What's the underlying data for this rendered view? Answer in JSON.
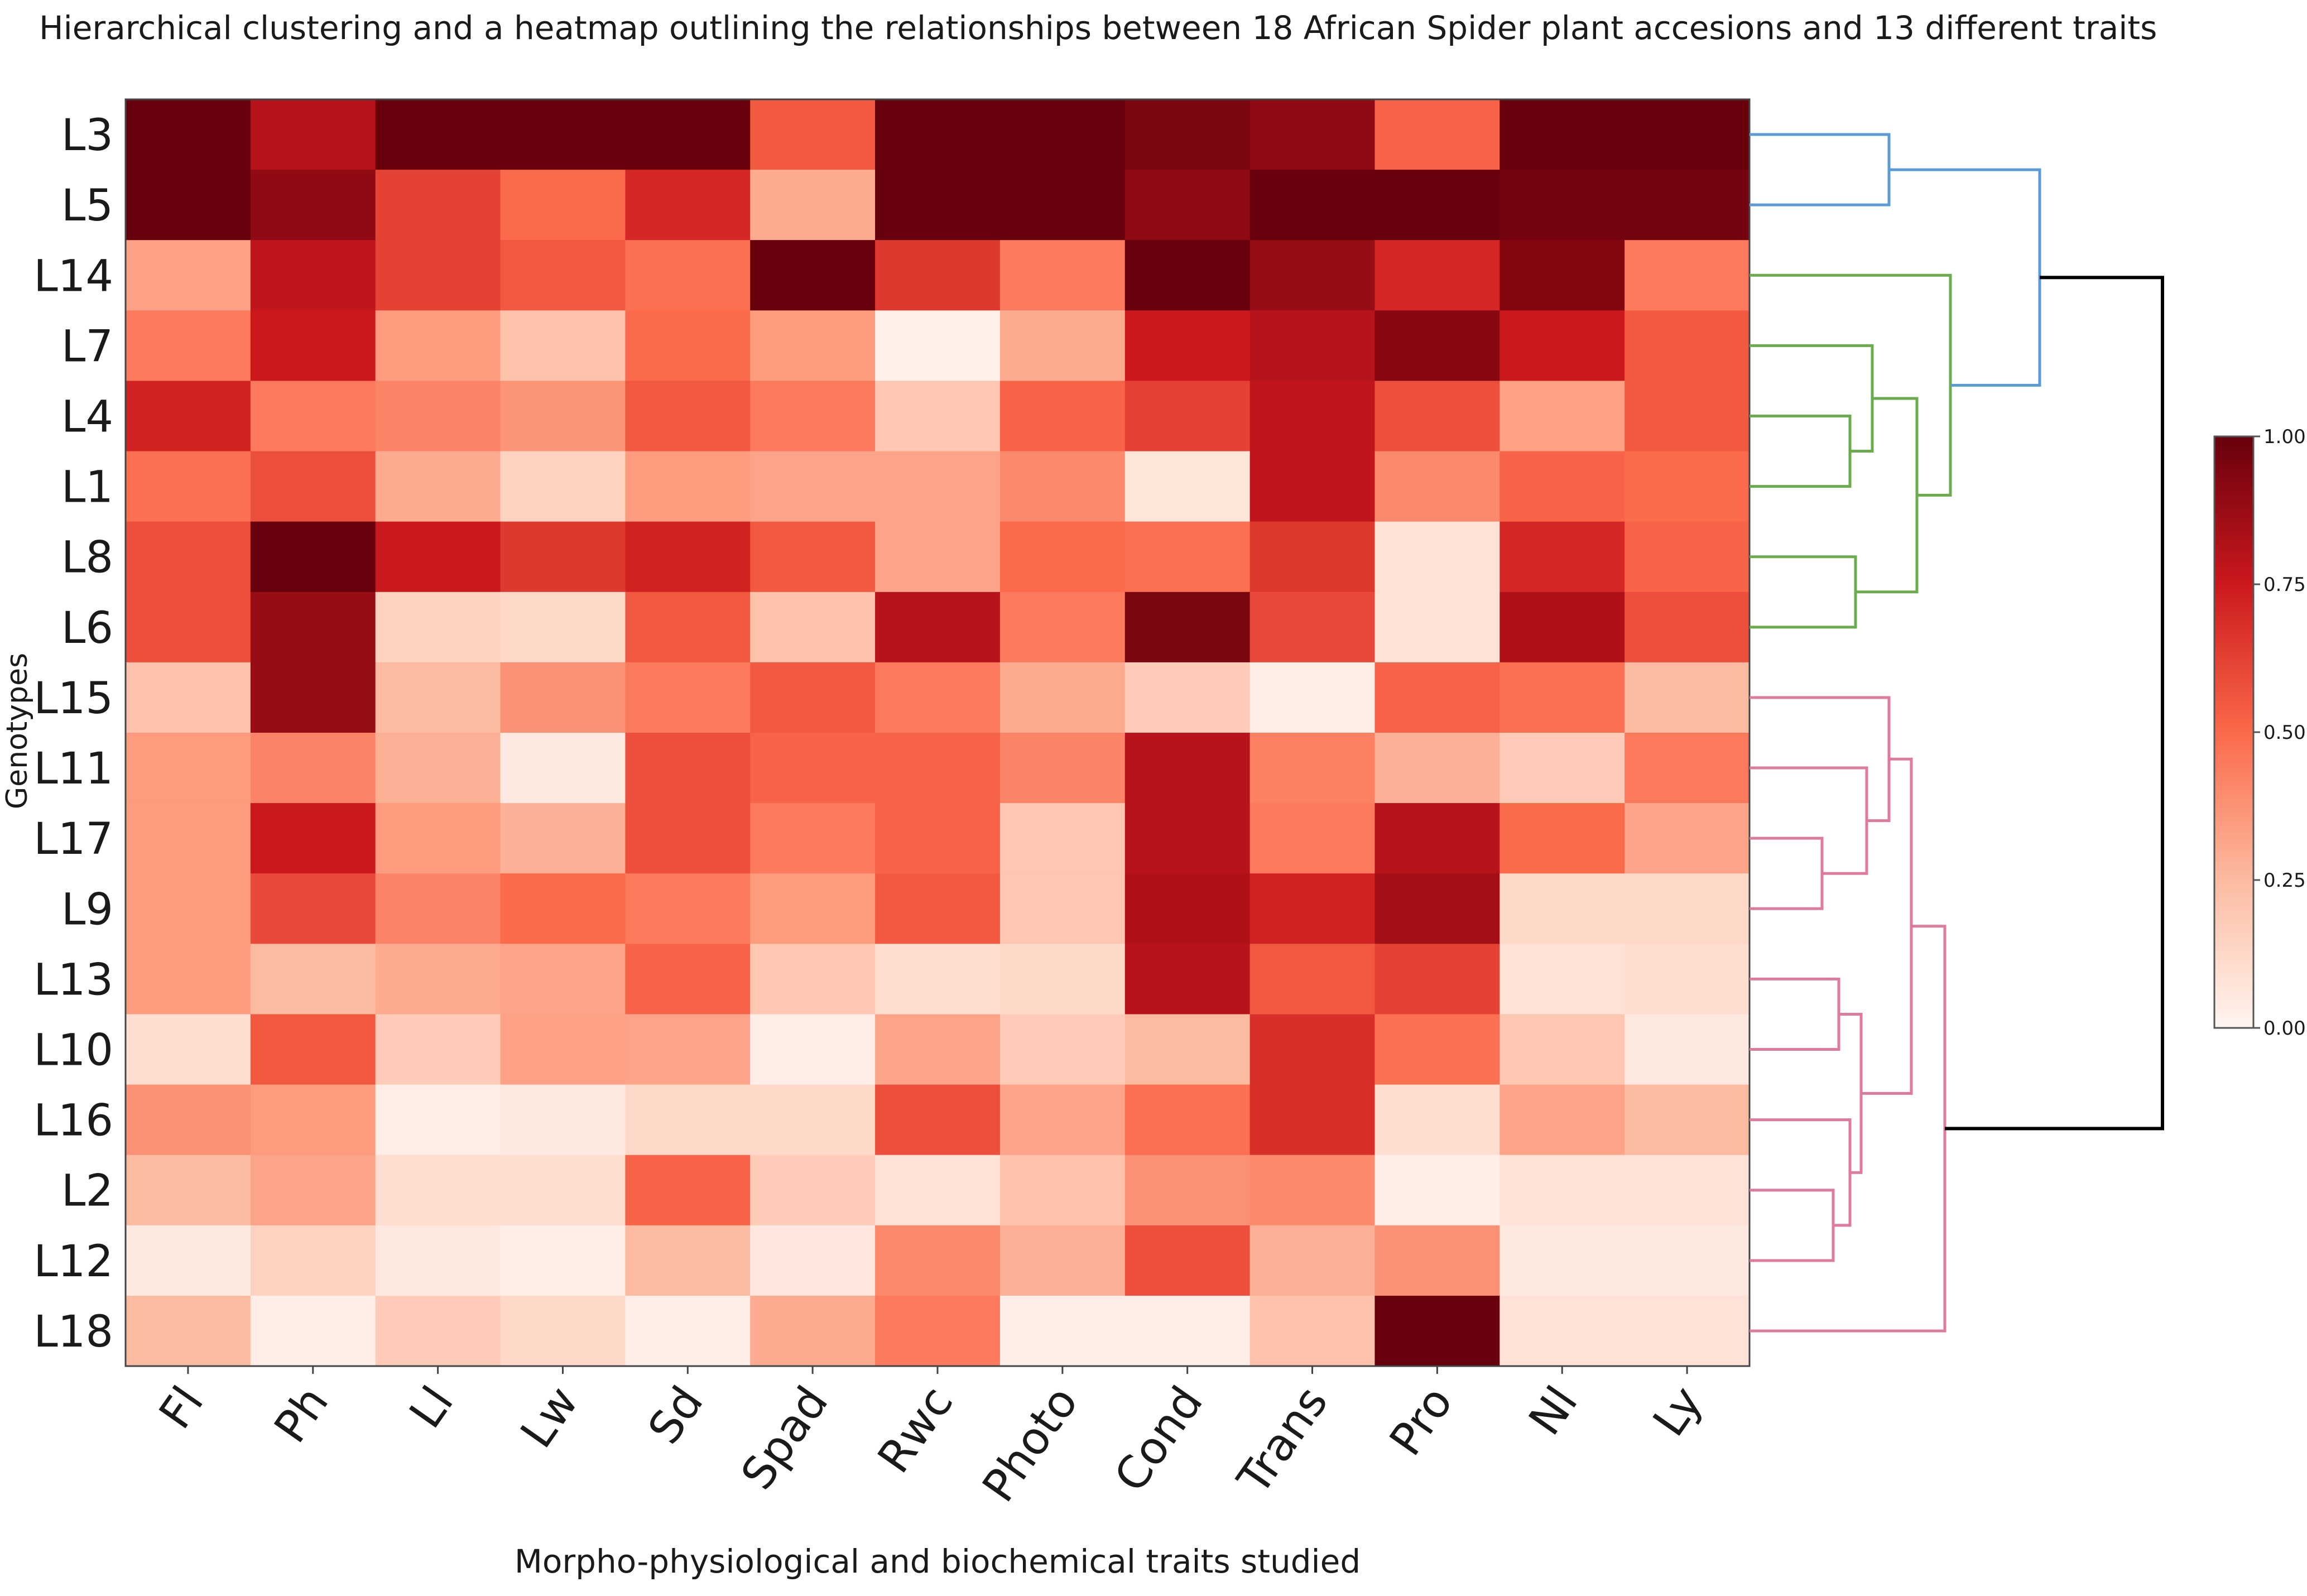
{
  "chart_data": {
    "type": "heatmap",
    "title": "Hierarchical clustering and a heatmap outlining the relationships between 18 African Spider plant accesions and 13 different traits",
    "xlabel": "Morpho-physiological and biochemical traits studied",
    "ylabel": "Genotypes",
    "columns": [
      "Fl",
      "Ph",
      "Ll",
      "Lw",
      "Sd",
      "Spad",
      "Rwc",
      "Photo",
      "Cond",
      "Trans",
      "Pro",
      "Nl",
      "Ly"
    ],
    "rows": [
      "L3",
      "L5",
      "L14",
      "L7",
      "L4",
      "L1",
      "L8",
      "L6",
      "L15",
      "L11",
      "L17",
      "L9",
      "L13",
      "L10",
      "L16",
      "L2",
      "L12",
      "L18"
    ],
    "values": [
      [
        1.0,
        0.8,
        1.0,
        1.0,
        1.0,
        0.55,
        1.0,
        1.0,
        0.95,
        0.9,
        0.52,
        1.0,
        1.0
      ],
      [
        1.0,
        0.9,
        0.62,
        0.5,
        0.7,
        0.3,
        1.0,
        1.0,
        0.9,
        1.0,
        1.0,
        0.97,
        0.97
      ],
      [
        0.33,
        0.78,
        0.62,
        0.55,
        0.48,
        1.0,
        0.65,
        0.45,
        1.0,
        0.88,
        0.7,
        0.93,
        0.45
      ],
      [
        0.45,
        0.75,
        0.35,
        0.22,
        0.5,
        0.35,
        0.02,
        0.3,
        0.75,
        0.8,
        0.92,
        0.75,
        0.55
      ],
      [
        0.72,
        0.45,
        0.42,
        0.37,
        0.55,
        0.45,
        0.2,
        0.52,
        0.62,
        0.78,
        0.58,
        0.33,
        0.55
      ],
      [
        0.48,
        0.58,
        0.3,
        0.15,
        0.35,
        0.32,
        0.32,
        0.4,
        0.07,
        0.78,
        0.4,
        0.52,
        0.5
      ],
      [
        0.58,
        1.0,
        0.75,
        0.65,
        0.72,
        0.55,
        0.32,
        0.5,
        0.48,
        0.65,
        0.08,
        0.7,
        0.52
      ],
      [
        0.58,
        0.88,
        0.15,
        0.12,
        0.55,
        0.22,
        0.8,
        0.45,
        0.95,
        0.6,
        0.08,
        0.82,
        0.58
      ],
      [
        0.22,
        0.88,
        0.25,
        0.38,
        0.45,
        0.55,
        0.45,
        0.3,
        0.18,
        0.03,
        0.52,
        0.48,
        0.25
      ],
      [
        0.35,
        0.42,
        0.28,
        0.05,
        0.58,
        0.52,
        0.52,
        0.42,
        0.8,
        0.43,
        0.28,
        0.18,
        0.45
      ],
      [
        0.35,
        0.75,
        0.35,
        0.28,
        0.58,
        0.45,
        0.52,
        0.2,
        0.8,
        0.45,
        0.8,
        0.5,
        0.32
      ],
      [
        0.35,
        0.6,
        0.42,
        0.5,
        0.45,
        0.35,
        0.55,
        0.2,
        0.82,
        0.72,
        0.85,
        0.12,
        0.12
      ],
      [
        0.35,
        0.25,
        0.3,
        0.32,
        0.52,
        0.2,
        0.1,
        0.12,
        0.8,
        0.55,
        0.62,
        0.08,
        0.1
      ],
      [
        0.1,
        0.55,
        0.18,
        0.33,
        0.32,
        0.03,
        0.32,
        0.18,
        0.25,
        0.68,
        0.48,
        0.2,
        0.05
      ],
      [
        0.38,
        0.35,
        0.03,
        0.05,
        0.12,
        0.12,
        0.58,
        0.32,
        0.48,
        0.68,
        0.1,
        0.32,
        0.25
      ],
      [
        0.25,
        0.32,
        0.1,
        0.1,
        0.52,
        0.18,
        0.08,
        0.22,
        0.38,
        0.4,
        0.03,
        0.08,
        0.08
      ],
      [
        0.05,
        0.15,
        0.05,
        0.03,
        0.25,
        0.06,
        0.4,
        0.28,
        0.58,
        0.28,
        0.38,
        0.05,
        0.05
      ],
      [
        0.25,
        0.03,
        0.18,
        0.12,
        0.03,
        0.3,
        0.45,
        0.03,
        0.03,
        0.22,
        1.0,
        0.08,
        0.08
      ]
    ],
    "colorbar": {
      "ticks": [
        "0.00",
        "0.25",
        "0.50",
        "0.75",
        "1.00"
      ],
      "tick_values": [
        0,
        0.25,
        0.5,
        0.75,
        1.0
      ],
      "range": [
        0,
        1
      ]
    },
    "dendrogram": {
      "colors": {
        "cluster_a": "#5b9bd5",
        "cluster_b": "#6aab4e",
        "cluster_c": "#e07a9a",
        "root": "#000000"
      },
      "links": [
        {
          "a": "L3",
          "b": "L5",
          "h": 0.25,
          "color": "cluster_a"
        },
        {
          "a": "L4",
          "b": "L1",
          "h": 0.18,
          "color": "cluster_b"
        },
        {
          "a": "L8",
          "b": "L6",
          "h": 0.19,
          "color": "cluster_b"
        },
        {
          "a": "L7",
          "b": [
            "L4",
            "L1"
          ],
          "h": 0.22,
          "color": "cluster_b"
        },
        {
          "a": [
            "L7",
            "L4",
            "L1"
          ],
          "b": [
            "L8",
            "L6"
          ],
          "h": 0.3,
          "color": "cluster_b"
        },
        {
          "a": "L14",
          "b": [
            "L7",
            "L4",
            "L1",
            "L8",
            "L6"
          ],
          "h": 0.36,
          "color": "cluster_b"
        },
        {
          "a": [
            "L3",
            "L5"
          ],
          "b": [
            "L14",
            "L7",
            "L4",
            "L1",
            "L8",
            "L6"
          ],
          "h": 0.52,
          "color": "cluster_a"
        },
        {
          "a": "L17",
          "b": "L9",
          "h": 0.13,
          "color": "cluster_c"
        },
        {
          "a": "L11",
          "b": [
            "L17",
            "L9"
          ],
          "h": 0.21,
          "color": "cluster_c"
        },
        {
          "a": "L15",
          "b": [
            "L11",
            "L17",
            "L9"
          ],
          "h": 0.25,
          "color": "cluster_c"
        },
        {
          "a": "L2",
          "b": "L12",
          "h": 0.15,
          "color": "cluster_c"
        },
        {
          "a": "L16",
          "b": [
            "L2",
            "L12"
          ],
          "h": 0.18,
          "color": "cluster_c"
        },
        {
          "a": "L13",
          "b": "L10",
          "h": 0.16,
          "color": "cluster_c"
        },
        {
          "a": [
            "L13",
            "L10"
          ],
          "b": [
            "L16",
            "L2",
            "L12"
          ],
          "h": 0.2,
          "color": "cluster_c"
        },
        {
          "a": [
            "L15",
            "L11",
            "L17",
            "L9"
          ],
          "b": [
            "L13",
            "L10",
            "L16",
            "L2",
            "L12"
          ],
          "h": 0.29,
          "color": "cluster_c"
        },
        {
          "a": [
            "L15",
            "L11",
            "L17",
            "L9",
            "L13",
            "L10",
            "L16",
            "L2",
            "L12"
          ],
          "b": "L18",
          "h": 0.35,
          "color": "cluster_c"
        },
        {
          "a": [
            "L3",
            "L5",
            "L14",
            "L7",
            "L4",
            "L1",
            "L8",
            "L6"
          ],
          "b": [
            "L15",
            "L11",
            "L17",
            "L9",
            "L13",
            "L10",
            "L16",
            "L2",
            "L12",
            "L18"
          ],
          "h": 0.74,
          "color": "root"
        }
      ]
    }
  }
}
